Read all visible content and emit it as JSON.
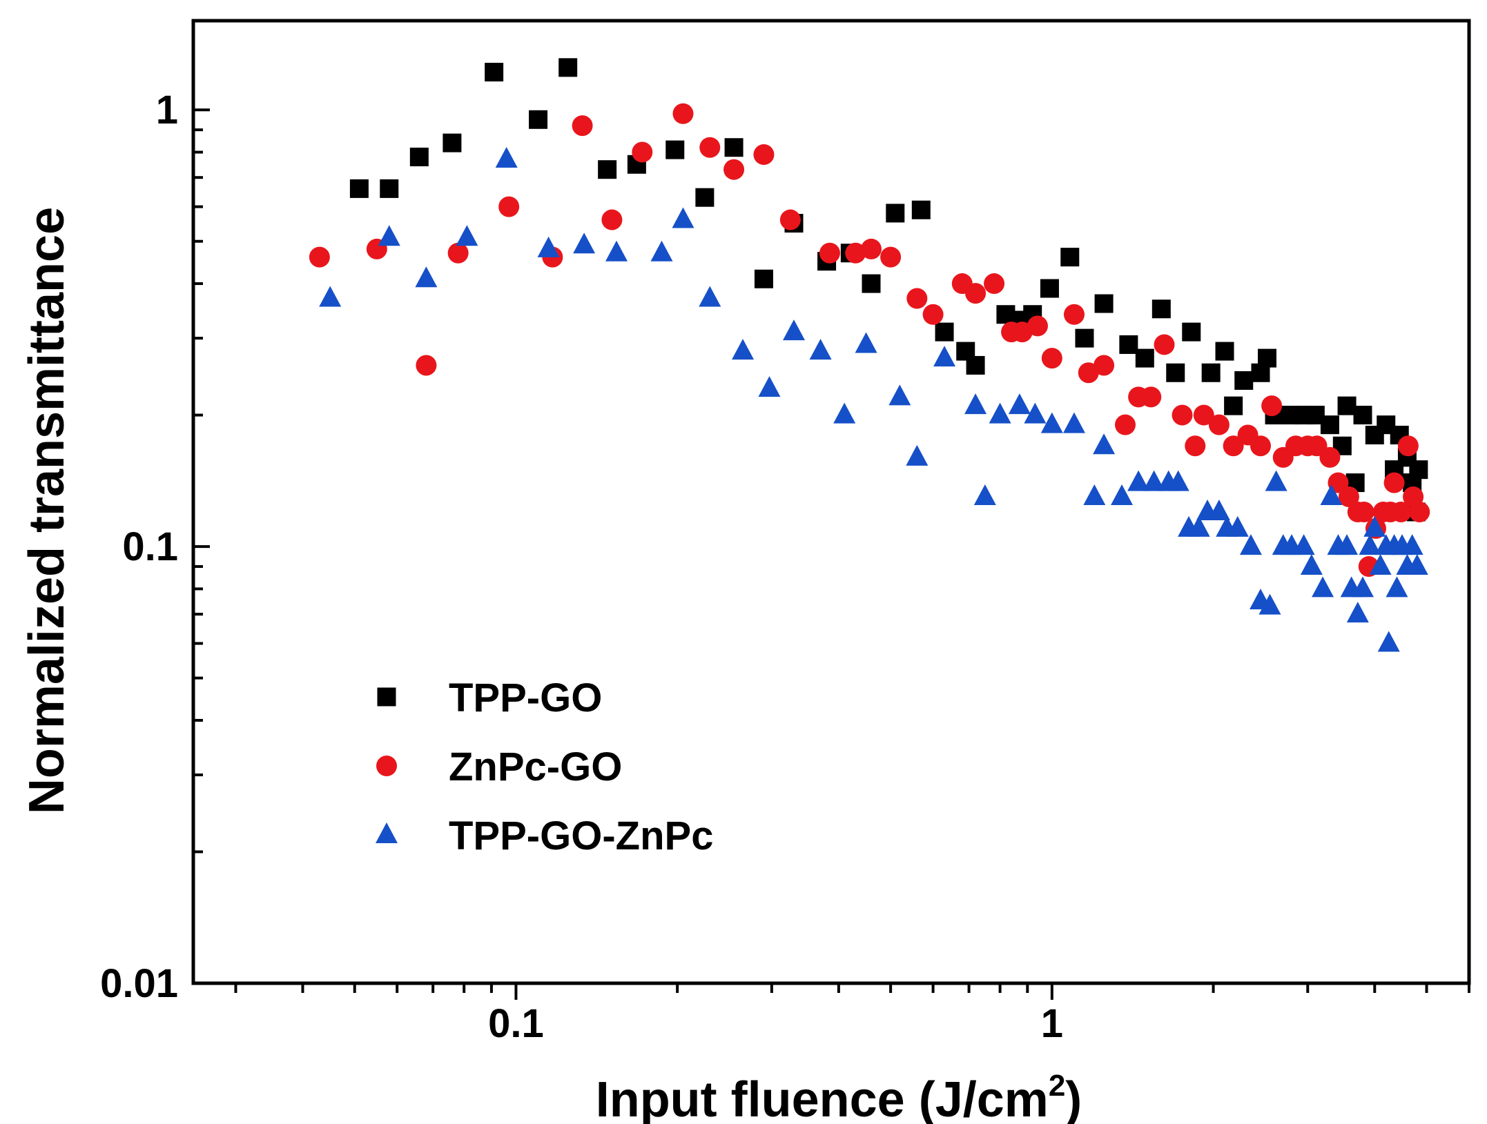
{
  "chart_data": {
    "type": "scatter",
    "title": "",
    "xlabel": "Input fluence (J/cm",
    "xlabel_sup": "2",
    "xlabel_close": ")",
    "ylabel": "Normalized transmittance",
    "xscale": "log",
    "yscale": "log",
    "xlim": [
      0.025,
      6.0
    ],
    "ylim": [
      0.01,
      1.6
    ],
    "x_ticks": [
      {
        "value": 0.1,
        "label": "0.1"
      },
      {
        "value": 1,
        "label": "1"
      }
    ],
    "y_ticks": [
      {
        "value": 0.01,
        "label": "0.01"
      },
      {
        "value": 0.1,
        "label": "0.1"
      },
      {
        "value": 1,
        "label": "1"
      }
    ],
    "grid": false,
    "legend_position": "lower-left",
    "series": [
      {
        "name": "TPP-GO",
        "marker": "square",
        "color": "#000000",
        "points": [
          [
            0.051,
            0.66
          ],
          [
            0.058,
            0.66
          ],
          [
            0.066,
            0.78
          ],
          [
            0.076,
            0.84
          ],
          [
            0.091,
            1.22
          ],
          [
            0.11,
            0.95
          ],
          [
            0.125,
            1.25
          ],
          [
            0.148,
            0.73
          ],
          [
            0.168,
            0.75
          ],
          [
            0.198,
            0.81
          ],
          [
            0.225,
            0.63
          ],
          [
            0.255,
            0.82
          ],
          [
            0.29,
            0.41
          ],
          [
            0.33,
            0.55
          ],
          [
            0.38,
            0.45
          ],
          [
            0.42,
            0.47
          ],
          [
            0.46,
            0.4
          ],
          [
            0.51,
            0.58
          ],
          [
            0.57,
            0.59
          ],
          [
            0.63,
            0.31
          ],
          [
            0.69,
            0.28
          ],
          [
            0.72,
            0.26
          ],
          [
            0.82,
            0.34
          ],
          [
            0.88,
            0.33
          ],
          [
            0.92,
            0.34
          ],
          [
            0.99,
            0.39
          ],
          [
            1.08,
            0.46
          ],
          [
            1.15,
            0.3
          ],
          [
            1.25,
            0.36
          ],
          [
            1.39,
            0.29
          ],
          [
            1.49,
            0.27
          ],
          [
            1.6,
            0.35
          ],
          [
            1.7,
            0.25
          ],
          [
            1.82,
            0.31
          ],
          [
            1.98,
            0.25
          ],
          [
            2.1,
            0.28
          ],
          [
            2.28,
            0.24
          ],
          [
            2.18,
            0.21
          ],
          [
            2.45,
            0.25
          ],
          [
            2.52,
            0.27
          ],
          [
            2.6,
            0.2
          ],
          [
            2.8,
            0.2
          ],
          [
            2.95,
            0.2
          ],
          [
            3.1,
            0.2
          ],
          [
            3.3,
            0.19
          ],
          [
            3.48,
            0.17
          ],
          [
            3.55,
            0.21
          ],
          [
            3.68,
            0.14
          ],
          [
            3.8,
            0.2
          ],
          [
            4.0,
            0.18
          ],
          [
            4.2,
            0.19
          ],
          [
            4.35,
            0.15
          ],
          [
            4.45,
            0.18
          ],
          [
            4.6,
            0.16
          ],
          [
            4.7,
            0.14
          ],
          [
            4.78,
            0.12
          ],
          [
            4.83,
            0.15
          ]
        ]
      },
      {
        "name": "ZnPc-GO",
        "marker": "circle",
        "color": "#e8161c",
        "points": [
          [
            0.043,
            0.46
          ],
          [
            0.055,
            0.48
          ],
          [
            0.068,
            0.26
          ],
          [
            0.078,
            0.47
          ],
          [
            0.097,
            0.6
          ],
          [
            0.117,
            0.46
          ],
          [
            0.133,
            0.92
          ],
          [
            0.151,
            0.56
          ],
          [
            0.172,
            0.8
          ],
          [
            0.205,
            0.98
          ],
          [
            0.23,
            0.82
          ],
          [
            0.255,
            0.73
          ],
          [
            0.29,
            0.79
          ],
          [
            0.325,
            0.56
          ],
          [
            0.385,
            0.47
          ],
          [
            0.43,
            0.47
          ],
          [
            0.46,
            0.48
          ],
          [
            0.5,
            0.46
          ],
          [
            0.56,
            0.37
          ],
          [
            0.6,
            0.34
          ],
          [
            0.68,
            0.4
          ],
          [
            0.72,
            0.38
          ],
          [
            0.78,
            0.4
          ],
          [
            0.84,
            0.31
          ],
          [
            0.88,
            0.31
          ],
          [
            0.94,
            0.32
          ],
          [
            1.0,
            0.27
          ],
          [
            1.1,
            0.34
          ],
          [
            1.17,
            0.25
          ],
          [
            1.25,
            0.26
          ],
          [
            1.37,
            0.19
          ],
          [
            1.45,
            0.22
          ],
          [
            1.53,
            0.22
          ],
          [
            1.62,
            0.29
          ],
          [
            1.75,
            0.2
          ],
          [
            1.85,
            0.17
          ],
          [
            1.92,
            0.2
          ],
          [
            2.05,
            0.19
          ],
          [
            2.18,
            0.17
          ],
          [
            2.32,
            0.18
          ],
          [
            2.45,
            0.17
          ],
          [
            2.57,
            0.21
          ],
          [
            2.7,
            0.16
          ],
          [
            2.85,
            0.17
          ],
          [
            3.0,
            0.17
          ],
          [
            3.12,
            0.17
          ],
          [
            3.3,
            0.16
          ],
          [
            3.42,
            0.14
          ],
          [
            3.58,
            0.13
          ],
          [
            3.72,
            0.12
          ],
          [
            3.82,
            0.12
          ],
          [
            3.9,
            0.09
          ],
          [
            4.02,
            0.11
          ],
          [
            4.15,
            0.12
          ],
          [
            4.28,
            0.12
          ],
          [
            4.35,
            0.14
          ],
          [
            4.48,
            0.12
          ],
          [
            4.62,
            0.17
          ],
          [
            4.72,
            0.13
          ],
          [
            4.85,
            0.12
          ]
        ]
      },
      {
        "name": "TPP-GO-ZnPc",
        "marker": "triangle",
        "color": "#1650c8",
        "points": [
          [
            0.045,
            0.37
          ],
          [
            0.058,
            0.51
          ],
          [
            0.068,
            0.41
          ],
          [
            0.081,
            0.51
          ],
          [
            0.096,
            0.77
          ],
          [
            0.115,
            0.48
          ],
          [
            0.134,
            0.49
          ],
          [
            0.154,
            0.47
          ],
          [
            0.187,
            0.47
          ],
          [
            0.205,
            0.56
          ],
          [
            0.23,
            0.37
          ],
          [
            0.265,
            0.28
          ],
          [
            0.297,
            0.23
          ],
          [
            0.33,
            0.31
          ],
          [
            0.37,
            0.28
          ],
          [
            0.41,
            0.2
          ],
          [
            0.45,
            0.29
          ],
          [
            0.52,
            0.22
          ],
          [
            0.56,
            0.16
          ],
          [
            0.63,
            0.27
          ],
          [
            0.72,
            0.21
          ],
          [
            0.75,
            0.13
          ],
          [
            0.8,
            0.2
          ],
          [
            0.87,
            0.21
          ],
          [
            0.93,
            0.2
          ],
          [
            1.0,
            0.19
          ],
          [
            1.1,
            0.19
          ],
          [
            1.2,
            0.13
          ],
          [
            1.25,
            0.17
          ],
          [
            1.35,
            0.13
          ],
          [
            1.45,
            0.14
          ],
          [
            1.55,
            0.14
          ],
          [
            1.65,
            0.14
          ],
          [
            1.72,
            0.14
          ],
          [
            1.8,
            0.11
          ],
          [
            1.88,
            0.11
          ],
          [
            1.95,
            0.12
          ],
          [
            2.05,
            0.12
          ],
          [
            2.12,
            0.11
          ],
          [
            2.22,
            0.11
          ],
          [
            2.35,
            0.1
          ],
          [
            2.45,
            0.075
          ],
          [
            2.55,
            0.073
          ],
          [
            2.62,
            0.14
          ],
          [
            2.7,
            0.1
          ],
          [
            2.8,
            0.1
          ],
          [
            2.95,
            0.1
          ],
          [
            3.05,
            0.09
          ],
          [
            3.2,
            0.08
          ],
          [
            3.32,
            0.13
          ],
          [
            3.42,
            0.1
          ],
          [
            3.55,
            0.1
          ],
          [
            3.62,
            0.08
          ],
          [
            3.72,
            0.07
          ],
          [
            3.8,
            0.08
          ],
          [
            3.92,
            0.1
          ],
          [
            4.0,
            0.11
          ],
          [
            4.1,
            0.09
          ],
          [
            4.2,
            0.1
          ],
          [
            4.25,
            0.06
          ],
          [
            4.35,
            0.1
          ],
          [
            4.4,
            0.08
          ],
          [
            4.5,
            0.1
          ],
          [
            4.6,
            0.09
          ],
          [
            4.7,
            0.1
          ],
          [
            4.8,
            0.09
          ]
        ]
      }
    ]
  }
}
